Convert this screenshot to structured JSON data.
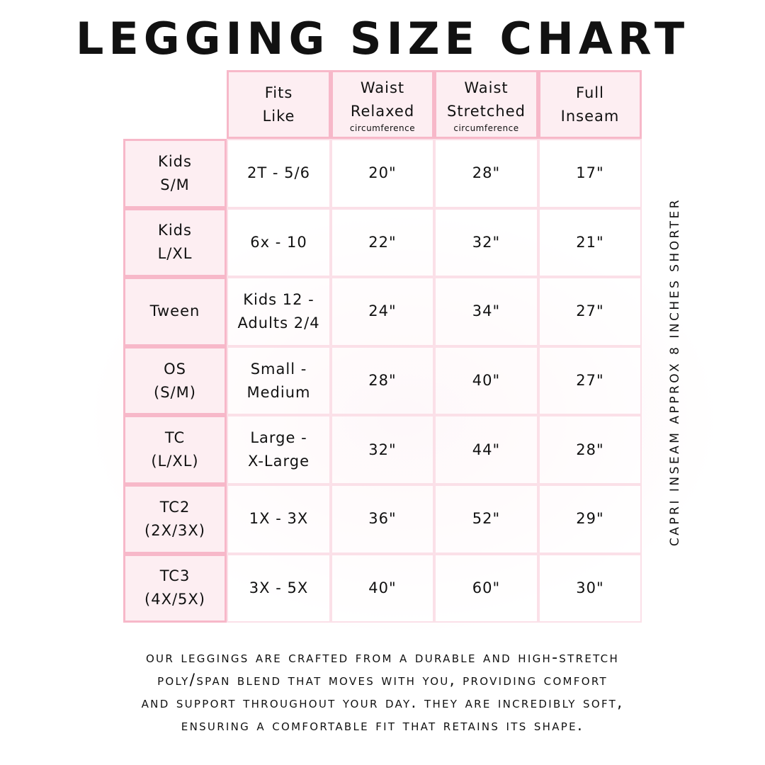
{
  "title": "LEGGING SIZE CHART",
  "headers": [
    {
      "line1": "Fits",
      "line2": "Like",
      "sub": ""
    },
    {
      "line1": "Waist",
      "line2": "Relaxed",
      "sub": "circumference"
    },
    {
      "line1": "Waist",
      "line2": "Stretched",
      "sub": "circumference"
    },
    {
      "line1": "Full",
      "line2": "Inseam",
      "sub": ""
    }
  ],
  "rows": [
    {
      "size1": "Kids",
      "size2": "S/M",
      "fits1": "2T - 5/6",
      "fits2": "",
      "relaxed": "20\"",
      "stretched": "28\"",
      "inseam": "17\""
    },
    {
      "size1": "Kids",
      "size2": "L/XL",
      "fits1": "6x - 10",
      "fits2": "",
      "relaxed": "22\"",
      "stretched": "32\"",
      "inseam": "21\""
    },
    {
      "size1": "Tween",
      "size2": "",
      "fits1": "Kids 12 -",
      "fits2": "Adults 2/4",
      "relaxed": "24\"",
      "stretched": "34\"",
      "inseam": "27\""
    },
    {
      "size1": "OS",
      "size2": "(S/M)",
      "fits1": "Small -",
      "fits2": "Medium",
      "relaxed": "28\"",
      "stretched": "40\"",
      "inseam": "27\""
    },
    {
      "size1": "TC",
      "size2": "(L/XL)",
      "fits1": "Large -",
      "fits2": "X-Large",
      "relaxed": "32\"",
      "stretched": "44\"",
      "inseam": "28\""
    },
    {
      "size1": "TC2",
      "size2": "(2X/3X)",
      "fits1": "1X - 3X",
      "fits2": "",
      "relaxed": "36\"",
      "stretched": "52\"",
      "inseam": "29\""
    },
    {
      "size1": "TC3",
      "size2": "(4X/5X)",
      "fits1": "3X - 5X",
      "fits2": "",
      "relaxed": "40\"",
      "stretched": "60\"",
      "inseam": "30\""
    }
  ],
  "side_note": "CAPRI INSEAM APPROX 8 INCHES SHORTER",
  "footer": [
    "Our leggings are crafted from a durable and high-stretch",
    "poly/span blend that moves with you, providing comfort",
    "and support throughout your day. They are incredibly soft,",
    "ensuring a comfortable fit that retains its shape."
  ],
  "colors": {
    "border": "#f7b8c9",
    "header_fill": "#fdeef2"
  }
}
